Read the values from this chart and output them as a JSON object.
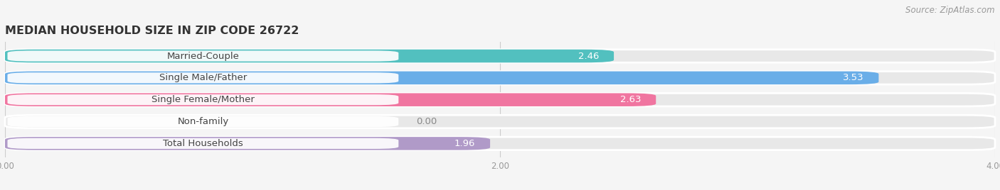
{
  "title": "MEDIAN HOUSEHOLD SIZE IN ZIP CODE 26722",
  "source": "Source: ZipAtlas.com",
  "categories": [
    "Married-Couple",
    "Single Male/Father",
    "Single Female/Mother",
    "Non-family",
    "Total Households"
  ],
  "values": [
    2.46,
    3.53,
    2.63,
    0.0,
    1.96
  ],
  "bar_colors": [
    "#52C0BF",
    "#6AAEE8",
    "#F075A0",
    "#F5C99A",
    "#B09AC8"
  ],
  "xlim": [
    0,
    4.0
  ],
  "xticks": [
    0.0,
    2.0,
    4.0
  ],
  "xtick_labels": [
    "0.00",
    "2.00",
    "4.00"
  ],
  "background_color": "#f5f5f5",
  "bar_bg_color": "#e8e8e8",
  "title_fontsize": 11.5,
  "label_fontsize": 9.5,
  "value_fontsize": 9.5,
  "source_fontsize": 8.5,
  "bar_height": 0.6,
  "figsize": [
    14.06,
    2.68
  ]
}
